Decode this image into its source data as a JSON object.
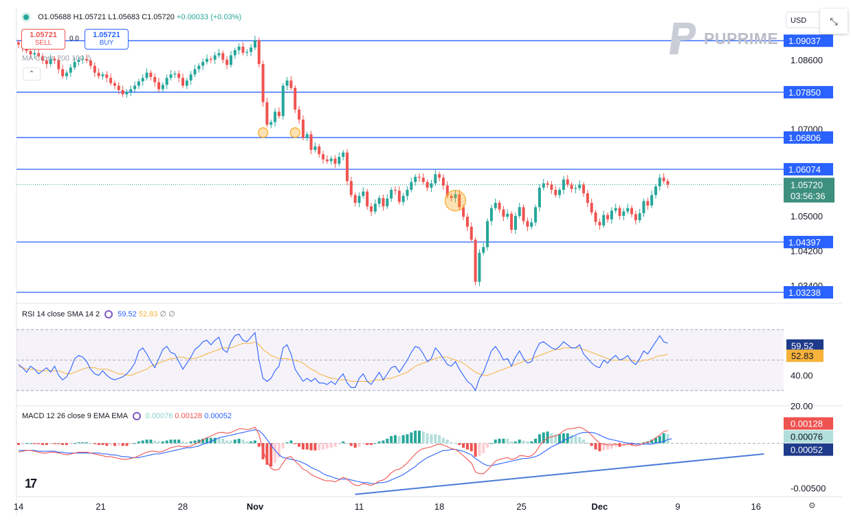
{
  "header": {
    "ohlc": {
      "o": "O1.05688",
      "h": "H1.05721",
      "l": "L1.05683",
      "c": "C1.05720",
      "chg": "+0.00033 (+0.03%)"
    },
    "sell": {
      "price": "1.05721",
      "label": "SELL"
    },
    "buy": {
      "price": "1.05721",
      "label": "BUY"
    },
    "spread": "0.0",
    "ma_legend": "MA Cross 200 100",
    "currency": "USD",
    "brand": "PUPRIME",
    "collapse_icon": "chevron-up-icon",
    "expand_icon": "expand-arrows-icon",
    "settings_icon": "gear-icon"
  },
  "rsi_legend": {
    "label": "RSI 14 close SMA 14 2",
    "rsi": "59.52",
    "sma": "52.83"
  },
  "macd_legend": {
    "label": "MACD 12 26 close 9 EMA EMA",
    "hist": "0.00076",
    "macd": "0.00128",
    "signal": "0.00052"
  },
  "colors": {
    "up": "#26a69a",
    "down": "#ef5350",
    "hline": "#2962ff",
    "macd": "#ef5350",
    "signal": "#2962ff",
    "rsi": "#2962ff",
    "rsi_sma": "#f7b23b",
    "highlight": "#f7a823"
  },
  "chart_data": [
    {
      "type": "candlestick",
      "title": "",
      "ylim": [
        1.03,
        1.095
      ],
      "price_ticks": [
        "1.08600",
        "1.07000",
        "1.05000",
        "1.04200",
        "1.03400"
      ],
      "x_labels": [
        "14",
        "21",
        "28",
        "Nov",
        "11",
        "18",
        "25",
        "Dec",
        "9",
        "16"
      ],
      "horizontal_levels": [
        "1.09037",
        "1.07850",
        "1.06806",
        "1.06074",
        "1.04397",
        "1.03238"
      ],
      "last_price": "1.05720",
      "countdown": "03:56:36",
      "closes": [
        1.0895,
        1.0888,
        1.088,
        1.0872,
        1.0875,
        1.0868,
        1.0858,
        1.085,
        1.0862,
        1.0858,
        1.0838,
        1.0822,
        1.083,
        1.0842,
        1.0855,
        1.086,
        1.0862,
        1.0858,
        1.0846,
        1.083,
        1.0822,
        1.0826,
        1.0818,
        1.0806,
        1.08,
        1.079,
        1.078,
        1.0786,
        1.0792,
        1.08,
        1.081,
        1.0818,
        1.083,
        1.082,
        1.0808,
        1.0792,
        1.0802,
        1.0818,
        1.0826,
        1.0828,
        1.0818,
        1.08,
        1.0812,
        1.0826,
        1.0838,
        1.0846,
        1.0855,
        1.0862,
        1.086,
        1.087,
        1.0875,
        1.086,
        1.0848,
        1.087,
        1.0882,
        1.089,
        1.0876,
        1.0878,
        1.0888,
        1.0905,
        1.085,
        1.0762,
        1.071,
        1.0716,
        1.074,
        1.073,
        1.08,
        1.0812,
        1.0795,
        1.0745,
        1.0722,
        1.068,
        1.0688,
        1.0652,
        1.066,
        1.0642,
        1.063,
        1.0626,
        1.0632,
        1.062,
        1.0636,
        1.0646,
        1.058,
        1.0548,
        1.053,
        1.0546,
        1.0556,
        1.0522,
        1.051,
        1.0528,
        1.0541,
        1.0522,
        1.054,
        1.056,
        1.0558,
        1.0532,
        1.0546,
        1.056,
        1.0578,
        1.059,
        1.0588,
        1.0578,
        1.0565,
        1.0575,
        1.0596,
        1.0588,
        1.057,
        1.0546,
        1.0541,
        1.055,
        1.052,
        1.0498,
        1.0475,
        1.0445,
        1.0348,
        1.0415,
        1.0428,
        1.0488,
        1.0518,
        1.053,
        1.0515,
        1.0498,
        1.0505,
        1.0468,
        1.05,
        1.052,
        1.0488,
        1.0475,
        1.0485,
        1.052,
        1.0565,
        1.0575,
        1.0572,
        1.056,
        1.0548,
        1.056,
        1.0584,
        1.0572,
        1.0562,
        1.0564,
        1.0572,
        1.0552,
        1.053,
        1.0508,
        1.0486,
        1.0478,
        1.0502,
        1.0492,
        1.0512,
        1.0518,
        1.05,
        1.051,
        1.0518,
        1.0504,
        1.049,
        1.0506,
        1.0534,
        1.0524,
        1.0548,
        1.0568,
        1.0588,
        1.058,
        1.0572
      ],
      "highlights": [
        {
          "x": 61,
          "y": 1.0692
        },
        {
          "x": 69,
          "y": 1.0692
        },
        {
          "x": 109,
          "y": 1.0535
        }
      ]
    },
    {
      "type": "line",
      "title": "RSI",
      "ylim": [
        20,
        80
      ],
      "y_ticks": [
        "40.00",
        "20.00"
      ],
      "bands": [
        70,
        50,
        30
      ],
      "series": [
        {
          "name": "RSI",
          "last": "59.52",
          "values": [
            47,
            45,
            42,
            46,
            44,
            41,
            43,
            45,
            42,
            46,
            40,
            37,
            39,
            44,
            51,
            53,
            52,
            49,
            44,
            41,
            40,
            43,
            40,
            38,
            37,
            38,
            39,
            41,
            44,
            48,
            56,
            58,
            54,
            49,
            45,
            51,
            57,
            59,
            55,
            54,
            49,
            44,
            48,
            52,
            57,
            59,
            62,
            63,
            60,
            63,
            65,
            57,
            55,
            62,
            66,
            67,
            63,
            62,
            65,
            68,
            50,
            38,
            36,
            38,
            43,
            46,
            58,
            60,
            54,
            44,
            40,
            36,
            38,
            36,
            38,
            35,
            35,
            34,
            36,
            34,
            38,
            41,
            35,
            32,
            32,
            38,
            41,
            36,
            34,
            38,
            42,
            37,
            41,
            45,
            46,
            42,
            46,
            50,
            55,
            59,
            58,
            54,
            49,
            51,
            58,
            55,
            51,
            47,
            46,
            49,
            44,
            40,
            36,
            34,
            30,
            38,
            42,
            49,
            56,
            59,
            55,
            50,
            51,
            46,
            52,
            56,
            51,
            48,
            49,
            56,
            61,
            62,
            60,
            58,
            57,
            59,
            62,
            60,
            58,
            58,
            60,
            54,
            51,
            48,
            46,
            45,
            50,
            48,
            51,
            53,
            50,
            51,
            53,
            49,
            47,
            51,
            56,
            54,
            58,
            62,
            66,
            62,
            61
          ]
        },
        {
          "name": "SMA",
          "last": "52.83",
          "values": [
            46,
            45,
            44,
            44,
            44,
            43,
            43,
            43,
            43,
            43,
            43,
            42,
            41,
            41,
            42,
            43,
            44,
            45,
            45,
            45,
            44,
            44,
            44,
            43,
            42,
            41,
            41,
            40,
            40,
            41,
            42,
            43,
            44,
            46,
            47,
            48,
            49,
            50,
            51,
            51,
            52,
            52,
            51,
            51,
            51,
            52,
            53,
            54,
            55,
            56,
            57,
            58,
            58,
            58,
            59,
            60,
            61,
            61,
            61,
            62,
            60,
            57,
            55,
            53,
            52,
            51,
            51,
            51,
            50,
            50,
            49,
            48,
            46,
            44,
            43,
            41,
            40,
            39,
            38,
            38,
            37,
            37,
            37,
            36,
            36,
            36,
            36,
            36,
            36,
            37,
            37,
            37,
            38,
            38,
            39,
            40,
            41,
            42,
            44,
            46,
            47,
            48,
            49,
            50,
            51,
            52,
            52,
            52,
            51,
            50,
            49,
            48,
            46,
            44,
            42,
            41,
            40,
            40,
            41,
            42,
            43,
            44,
            45,
            46,
            47,
            48,
            49,
            50,
            51,
            52,
            53,
            54,
            55,
            56,
            57,
            57,
            58,
            58,
            58,
            58,
            58,
            57,
            56,
            55,
            54,
            53,
            52,
            51,
            50,
            50,
            50,
            50,
            50,
            50,
            49,
            49,
            50,
            50,
            51,
            52,
            53,
            53,
            54
          ]
        }
      ]
    },
    {
      "type": "line+bar",
      "title": "MACD",
      "ylim": [
        -0.0058,
        0.0034
      ],
      "y_ticks": [
        "-0.00500"
      ],
      "trendline": [
        {
          "x": 84,
          "y": -0.0057
        },
        {
          "x": 186,
          "y": -0.0012
        }
      ],
      "series": [
        {
          "name": "MACD",
          "last": "0.00128",
          "values": [
            -0.001,
            -0.0009,
            -0.0008,
            -0.0008,
            -0.0009,
            -0.001,
            -0.0011,
            -0.0011,
            -0.001,
            -0.001,
            -0.0011,
            -0.0012,
            -0.0013,
            -0.0012,
            -0.0011,
            -0.001,
            -0.001,
            -0.001,
            -0.0011,
            -0.0012,
            -0.0013,
            -0.0014,
            -0.0015,
            -0.0015,
            -0.0016,
            -0.0017,
            -0.0018,
            -0.0018,
            -0.0017,
            -0.0016,
            -0.0014,
            -0.0012,
            -0.001,
            -0.0009,
            -0.0009,
            -0.001,
            -0.0009,
            -0.0007,
            -0.0005,
            -0.0004,
            -0.0003,
            -0.0004,
            -0.0004,
            -0.0003,
            -0.0001,
            0.0001,
            0.0004,
            0.0006,
            0.0008,
            0.001,
            0.0012,
            0.0012,
            0.0011,
            0.0012,
            0.0014,
            0.0016,
            0.0016,
            0.0015,
            0.0016,
            0.0018,
            0.001,
            -0.0008,
            -0.002,
            -0.0028,
            -0.003,
            -0.0029,
            -0.0022,
            -0.0016,
            -0.0015,
            -0.002,
            -0.0024,
            -0.0029,
            -0.0031,
            -0.0035,
            -0.0037,
            -0.0039,
            -0.0041,
            -0.0042,
            -0.0042,
            -0.0043,
            -0.0041,
            -0.0038,
            -0.004,
            -0.0044,
            -0.0047,
            -0.0047,
            -0.0045,
            -0.0046,
            -0.0047,
            -0.0045,
            -0.0042,
            -0.0041,
            -0.0038,
            -0.0033,
            -0.003,
            -0.0029,
            -0.0026,
            -0.0022,
            -0.0017,
            -0.0012,
            -0.0008,
            -0.0006,
            -0.0005,
            -0.0004,
            -0.0002,
            -0.0001,
            -0.0002,
            -0.0004,
            -0.0006,
            -0.0007,
            -0.001,
            -0.0014,
            -0.0018,
            -0.0022,
            -0.0032,
            -0.0034,
            -0.0034,
            -0.003,
            -0.0025,
            -0.002,
            -0.0018,
            -0.0017,
            -0.0016,
            -0.0018,
            -0.0017,
            -0.0014,
            -0.0014,
            -0.0015,
            -0.0014,
            -0.001,
            -0.0003,
            0.0002,
            0.0006,
            0.0007,
            0.0008,
            0.001,
            0.0014,
            0.0016,
            0.0016,
            0.0017,
            0.0018,
            0.0016,
            0.0013,
            0.0009,
            0.0004,
            0.0,
            -0.0001,
            -0.0002,
            -0.0002,
            -0.0001,
            -0.0002,
            -0.0002,
            -0.0001,
            -0.0002,
            -0.0003,
            -0.0002,
            0.0,
            0.0001,
            0.0003,
            0.0006,
            0.0009,
            0.0013,
            0.0014
          ]
        },
        {
          "name": "Signal",
          "last": "0.00052",
          "values": [
            -0.0008,
            -0.0008,
            -0.0008,
            -0.0008,
            -0.0008,
            -0.0009,
            -0.0009,
            -0.0009,
            -0.0009,
            -0.0009,
            -0.001,
            -0.001,
            -0.0011,
            -0.0011,
            -0.0011,
            -0.0011,
            -0.0011,
            -0.0011,
            -0.0011,
            -0.0011,
            -0.0011,
            -0.0012,
            -0.0012,
            -0.0013,
            -0.0013,
            -0.0014,
            -0.0015,
            -0.0015,
            -0.0016,
            -0.0016,
            -0.0016,
            -0.0015,
            -0.0014,
            -0.0013,
            -0.0012,
            -0.0012,
            -0.0011,
            -0.001,
            -0.0009,
            -0.0008,
            -0.0007,
            -0.0006,
            -0.0005,
            -0.0005,
            -0.0004,
            -0.0003,
            -0.0001,
            0.0,
            0.0002,
            0.0004,
            0.0006,
            0.0007,
            0.0008,
            0.0009,
            0.001,
            0.0011,
            0.0012,
            0.0013,
            0.0014,
            0.0015,
            0.0014,
            0.001,
            0.0004,
            -0.0002,
            -0.0008,
            -0.0013,
            -0.0016,
            -0.0017,
            -0.0018,
            -0.0019,
            -0.002,
            -0.0022,
            -0.0024,
            -0.0027,
            -0.0029,
            -0.0031,
            -0.0034,
            -0.0036,
            -0.0037,
            -0.0039,
            -0.004,
            -0.004,
            -0.004,
            -0.0041,
            -0.0042,
            -0.0043,
            -0.0044,
            -0.0044,
            -0.0045,
            -0.0045,
            -0.0044,
            -0.0044,
            -0.0043,
            -0.0041,
            -0.0039,
            -0.0037,
            -0.0035,
            -0.0032,
            -0.0029,
            -0.0026,
            -0.0022,
            -0.0019,
            -0.0016,
            -0.0014,
            -0.0012,
            -0.001,
            -0.0008,
            -0.0008,
            -0.0007,
            -0.0007,
            -0.0008,
            -0.0009,
            -0.0011,
            -0.0013,
            -0.0017,
            -0.002,
            -0.0023,
            -0.0025,
            -0.0025,
            -0.0024,
            -0.0023,
            -0.0022,
            -0.0021,
            -0.002,
            -0.0019,
            -0.0018,
            -0.0017,
            -0.0017,
            -0.0016,
            -0.0015,
            -0.0013,
            -0.001,
            -0.0007,
            -0.0004,
            -0.0002,
            0.0,
            0.0003,
            0.0005,
            0.0007,
            0.0009,
            0.0011,
            0.0012,
            0.0012,
            0.0012,
            0.0011,
            0.0009,
            0.0007,
            0.0005,
            0.0004,
            0.0003,
            0.0002,
            0.0001,
            0.0,
            0.0,
            -0.0001,
            -0.0001,
            -0.0001,
            -0.0001,
            -0.0001,
            0.0,
            0.0001,
            0.0002,
            0.0004,
            0.0005
          ]
        }
      ]
    }
  ]
}
